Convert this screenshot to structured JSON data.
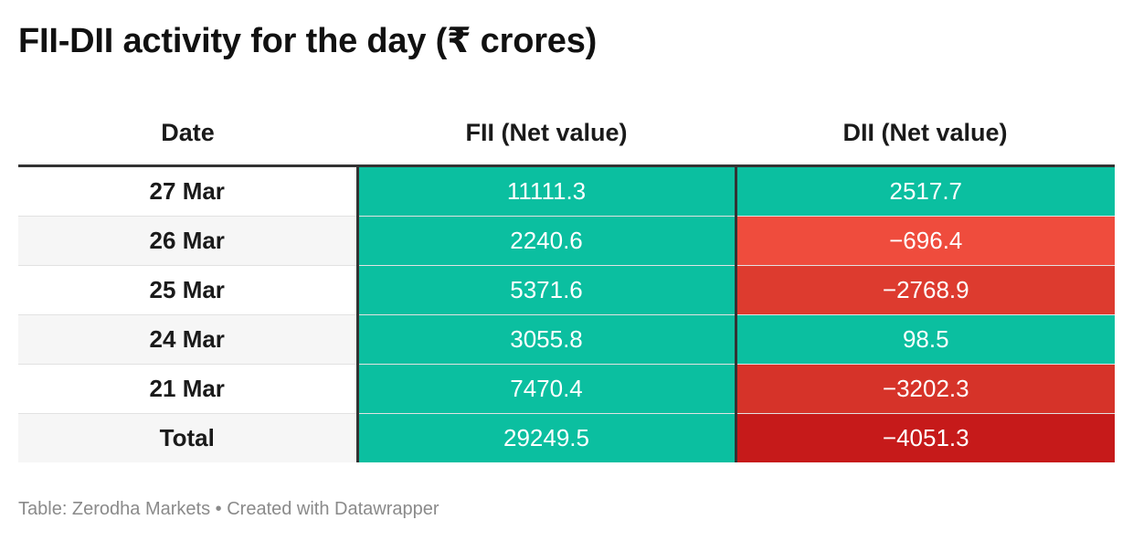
{
  "chart_data": {
    "type": "table",
    "title": "FII-DII activity for the day (₹ crores)",
    "columns": [
      "Date",
      "FII (Net value)",
      "DII (Net value)"
    ],
    "rows": [
      {
        "date": "27 Mar",
        "fii": "11111.3",
        "dii": "2517.7"
      },
      {
        "date": "26 Mar",
        "fii": "2240.6",
        "dii": "−696.4"
      },
      {
        "date": "25 Mar",
        "fii": "5371.6",
        "dii": "−2768.9"
      },
      {
        "date": "24 Mar",
        "fii": "3055.8",
        "dii": "98.5"
      },
      {
        "date": "21 Mar",
        "fii": "7470.4",
        "dii": "−3202.3"
      },
      {
        "date": "Total",
        "fii": "29249.5",
        "dii": "−4051.3"
      }
    ],
    "cell_colors": {
      "positive": "#0bbfa0",
      "negative_scale": [
        "#ef4c3d",
        "#dd3b2f",
        "#d63329",
        "#c61a1a"
      ]
    }
  },
  "footer": {
    "source": "Table: Zerodha Markets • Created with Datawrapper"
  }
}
